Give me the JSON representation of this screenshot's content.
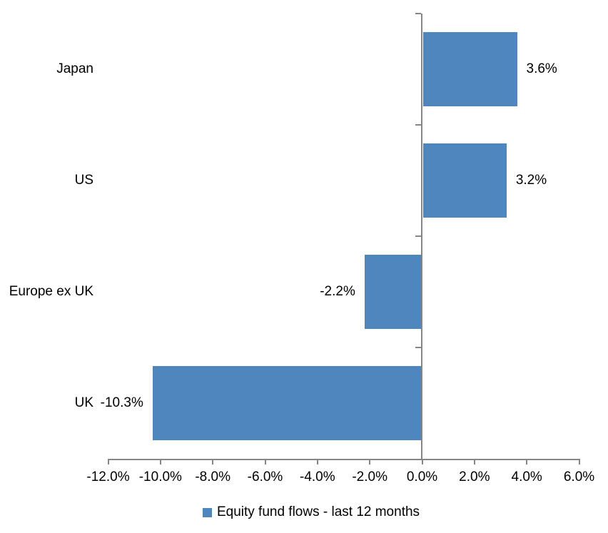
{
  "chart_data": {
    "type": "bar",
    "orientation": "horizontal",
    "title": "",
    "xlabel": "",
    "ylabel": "",
    "categories": [
      "Japan",
      "US",
      "Europe ex UK",
      "UK"
    ],
    "series": [
      {
        "name": "Equity fund flows - last 12 months",
        "values": [
          3.6,
          3.2,
          -2.2,
          -10.3
        ],
        "data_labels": [
          "3.6%",
          "3.2%",
          "-2.2%",
          "-10.3%"
        ]
      }
    ],
    "xlim": [
      -12,
      6
    ],
    "x_tick_values": [
      -12,
      -10,
      -8,
      -6,
      -4,
      -2,
      0,
      2,
      4,
      6
    ],
    "x_tick_labels": [
      "-12.0%",
      "-10.0%",
      "-8.0%",
      "-6.0%",
      "-4.0%",
      "-2.0%",
      "0.0%",
      "2.0%",
      "4.0%",
      "6.0%"
    ],
    "grid": false,
    "legend": {
      "position": "bottom",
      "entries": [
        {
          "label": "Equity fund flows - last 12 months",
          "color": "#4E86BD"
        }
      ]
    }
  },
  "colors": {
    "bar": "#4E86BD",
    "axis": "#868686",
    "text": "#000000",
    "background": "#FFFFFF"
  }
}
